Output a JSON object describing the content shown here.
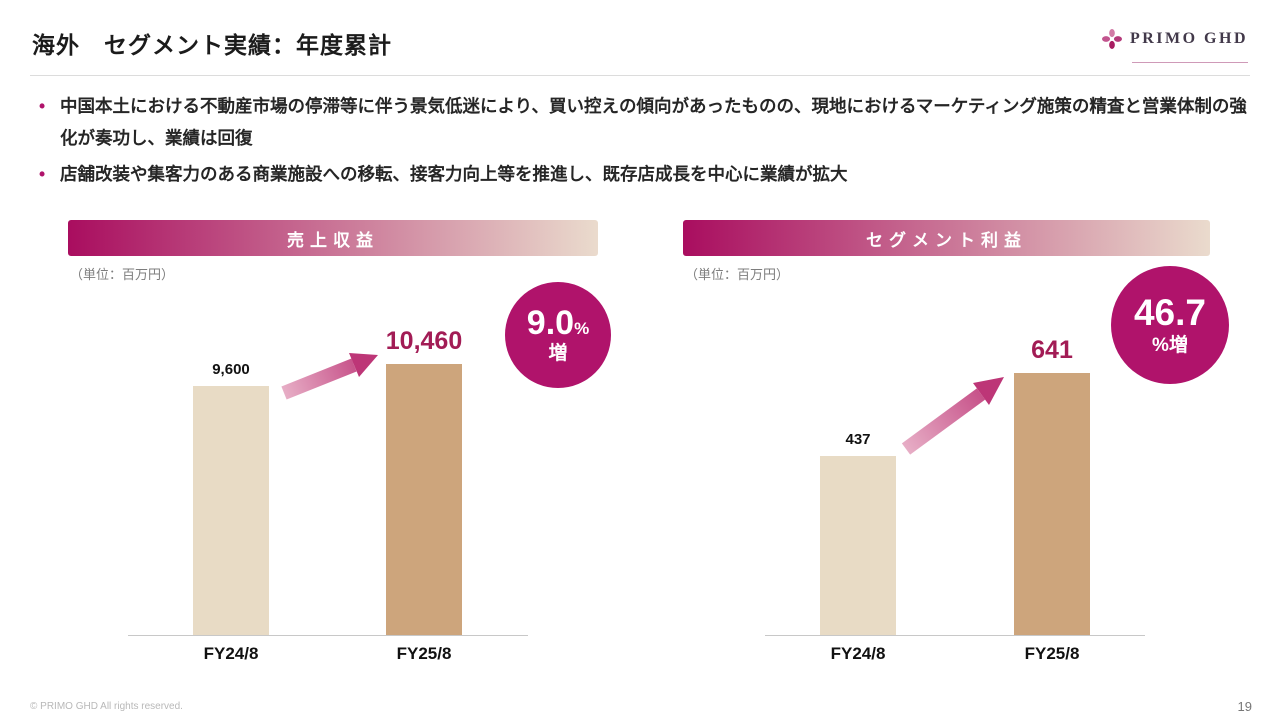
{
  "slide": {
    "title": "海外　セグメント実績：年度累計",
    "logo_text": "PRIMO GHD",
    "footer": "© PRIMO GHD All rights reserved.",
    "page_number": "19"
  },
  "bullets": [
    {
      "text": "中国本土における不動産市場の停滞等に伴う景気低迷により、買い控えの傾向があったものの、現地におけるマーケティング施策の精査と営業体制の強化が奏功し、業績は回復"
    },
    {
      "text": "店舗改装や集客力のある商業施設への移転、接客力向上等を推進し、既存店成長を中心に業績が拡大"
    }
  ],
  "chart_data": [
    {
      "type": "bar",
      "title": "売上収益",
      "unit_label": "（単位：百万円）",
      "categories": [
        "FY24/8",
        "FY25/8"
      ],
      "values": [
        9600,
        10460
      ],
      "value_labels": [
        "9,600",
        "10,460"
      ],
      "ylim": [
        0,
        10800
      ],
      "grid": false,
      "legend": "none",
      "badge": {
        "line1_big": "9.0",
        "line1_small": "%",
        "line2": "増"
      }
    },
    {
      "type": "bar",
      "title": "セグメント利益",
      "unit_label": "（単位：百万円）",
      "categories": [
        "FY24/8",
        "FY25/8"
      ],
      "values": [
        437,
        641
      ],
      "value_labels": [
        "437",
        "641"
      ],
      "ylim": [
        0,
        660
      ],
      "grid": false,
      "legend": "none",
      "badge": {
        "line1_big": "46.7",
        "line1_small": "",
        "line2": "%増"
      }
    }
  ],
  "colors": {
    "accent": "#b0136b",
    "banner_start": "#a90d5f",
    "banner_end": "#eadbcd",
    "bar_light": "#e8dbc5",
    "bar_dark": "#cda57c",
    "highlight_number": "#a21c55",
    "badge_bg": "#b0136b",
    "arrow_start": "#e7aec6",
    "arrow_end": "#bd3677"
  }
}
